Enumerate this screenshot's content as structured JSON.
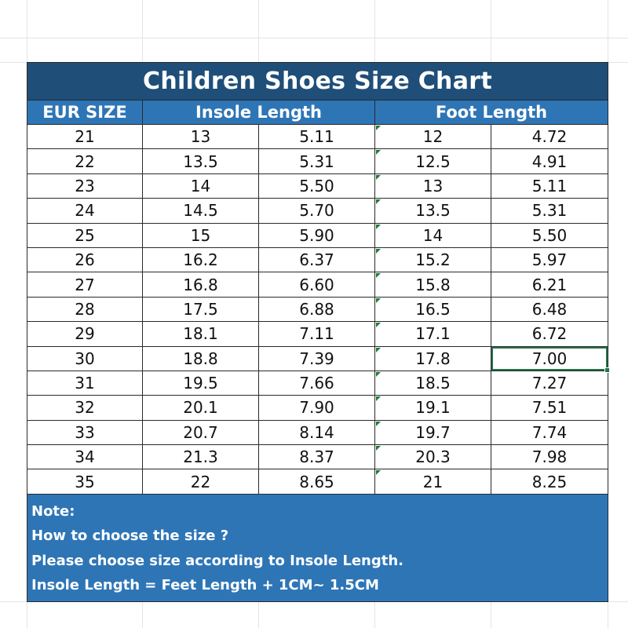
{
  "title": "Children Shoes Size Chart",
  "headers": {
    "eur_size": "EUR SIZE",
    "insole_length": "Insole Length",
    "foot_length": "Foot Length"
  },
  "rows": [
    [
      "21",
      "13",
      "5.11",
      "12",
      "4.72"
    ],
    [
      "22",
      "13.5",
      "5.31",
      "12.5",
      "4.91"
    ],
    [
      "23",
      "14",
      "5.50",
      "13",
      "5.11"
    ],
    [
      "24",
      "14.5",
      "5.70",
      "13.5",
      "5.31"
    ],
    [
      "25",
      "15",
      "5.90",
      "14",
      "5.50"
    ],
    [
      "26",
      "16.2",
      "6.37",
      "15.2",
      "5.97"
    ],
    [
      "27",
      "16.8",
      "6.60",
      "15.8",
      "6.21"
    ],
    [
      "28",
      "17.5",
      "6.88",
      "16.5",
      "6.48"
    ],
    [
      "29",
      "18.1",
      "7.11",
      "17.1",
      "6.72"
    ],
    [
      "30",
      "18.8",
      "7.39",
      "17.8",
      "7.00"
    ],
    [
      "31",
      "19.5",
      "7.66",
      "18.5",
      "7.27"
    ],
    [
      "32",
      "20.1",
      "7.90",
      "19.1",
      "7.51"
    ],
    [
      "33",
      "20.7",
      "8.14",
      "19.7",
      "7.74"
    ],
    [
      "34",
      "21.3",
      "8.37",
      "20.3",
      "7.98"
    ],
    [
      "35",
      "22",
      "8.65",
      "21",
      "8.25"
    ]
  ],
  "note": {
    "label": "Note:",
    "line1": "How to choose the size ?",
    "line2": "Please choose size according to Insole Length.",
    "line3": "Insole Length = Feet Length + 1CM~ 1.5CM"
  },
  "colors": {
    "title_bg": "#1f4e79",
    "header_bg": "#2e75b6",
    "note_bg": "#2e75b6",
    "selection": "#217346"
  }
}
